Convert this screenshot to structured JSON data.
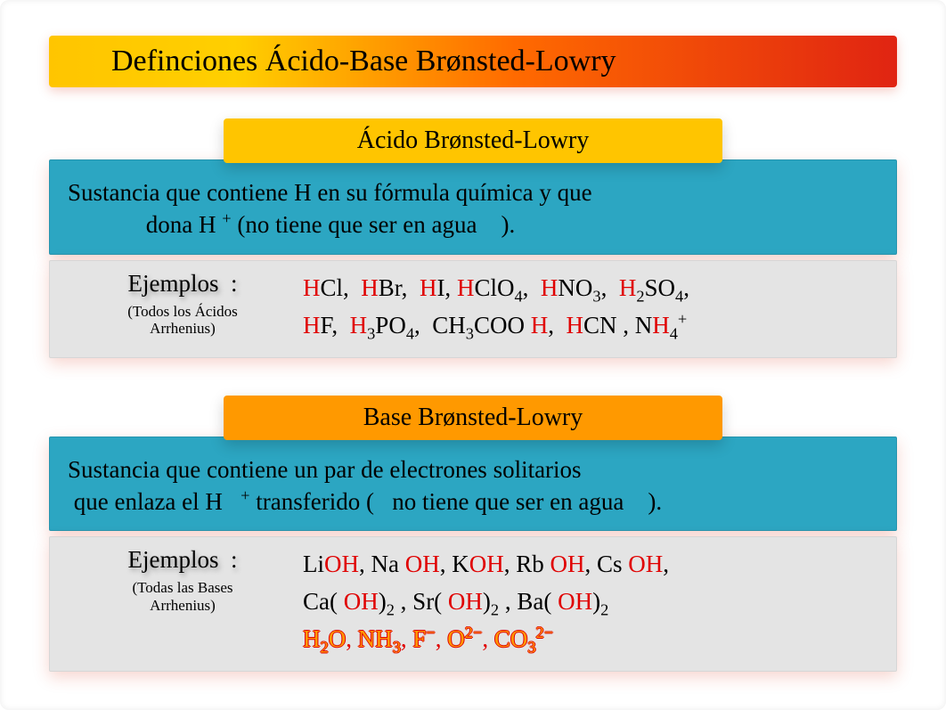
{
  "colors": {
    "title_gradient": "linear-gradient(90deg, #ffc500 0%, #ffcf00 22%, #ff6a00 55%, #e02412 100%)",
    "acid_heading_bg": "#ffc500",
    "base_heading_bg": "#ff9900",
    "def_bg": "#2ca6c2",
    "ex_bg": "#e4e4e4",
    "highlight": "#e00000",
    "orange_fill": "#ff9900"
  },
  "title": "Definciones Ácido-Base Brønsted-Lowry",
  "acid": {
    "heading": "Ácido Brønsted-Lowry",
    "definition_html": "Sustancia que contiene H en su fórmula química y que<br>&nbsp;&nbsp;&nbsp;&nbsp;&nbsp;&nbsp;&nbsp;&nbsp;&nbsp;&nbsp;&nbsp;&nbsp;&nbsp;dona H&nbsp;<sup>+</sup> (no tiene que ser en agua&nbsp;&nbsp;&nbsp;&nbsp;).",
    "examples_label": "Ejemplos&nbsp;&nbsp;:",
    "examples_note": "(Todos los Ácidos<br>Arrhenius)",
    "examples_rows": [
      "<span class='hl'>H</span>Cl,&nbsp; <span class='hl'>H</span>Br,&nbsp; <span class='hl'>H</span>I,&nbsp;<span class='hl'>H</span>ClO<sub>4</sub>,&nbsp; <span class='hl'>H</span>NO<sub>3</sub>,&nbsp; <span class='hl'>H</span><sub>2</sub>SO<sub>4</sub>,",
      "<span class='hl'>H</span>F,&nbsp; <span class='hl'>H</span><sub>3</sub>PO<sub>4</sub>,&nbsp; CH<sub>3</sub>COO&nbsp;<span class='hl'>H</span>,&nbsp; <span class='hl'>H</span>CN&nbsp;,&nbsp;N<span class='hl'>H</span><sub>4</sub><sup>+</sup>"
    ]
  },
  "base": {
    "heading": "Base Brønsted-Lowry",
    "definition_html": "Sustancia que contiene un par de electrones solitarios<br>&nbsp;que enlaza el H&nbsp;&nbsp;&nbsp;<sup>+</sup> transferido (&nbsp;&nbsp;&nbsp;no tiene que ser en agua&nbsp;&nbsp;&nbsp;&nbsp;).",
    "examples_label": "Ejemplos&nbsp;&nbsp;:",
    "examples_note": "(Todas las Bases<br>Arrhenius)",
    "examples_rows": [
      "Li<span class='hl'>OH</span>,&nbsp;Na&nbsp;<span class='hl'>OH</span>,&nbsp;K<span class='hl'>OH</span>,&nbsp;Rb&nbsp;<span class='hl'>OH</span>,&nbsp;Cs&nbsp;<span class='hl'>OH</span>,",
      "Ca(&nbsp;<span class='hl'>OH</span>)<sub>2</sub>&nbsp;,&nbsp;Sr(&nbsp;<span class='hl'>OH</span>)<sub>2</sub>&nbsp;,&nbsp;Ba(&nbsp;<span class='hl'>OH</span>)<sub>2</sub>",
      "<span class='orange-row'><span class='formula'>H<sub>2</sub>O</span><span class='sep'>,&nbsp;</span><span class='formula'>NH<sub>3</sub></span><span class='sep'>,&nbsp;</span><span class='formula'>F<sup>−</sup></span><span class='sep'>,&nbsp;</span><span class='formula'>O<sup>2−</sup></span><span class='sep'>,&nbsp;</span><span class='formula'>CO<sub>3</sub><sup>2−</sup></span></span>"
    ]
  }
}
